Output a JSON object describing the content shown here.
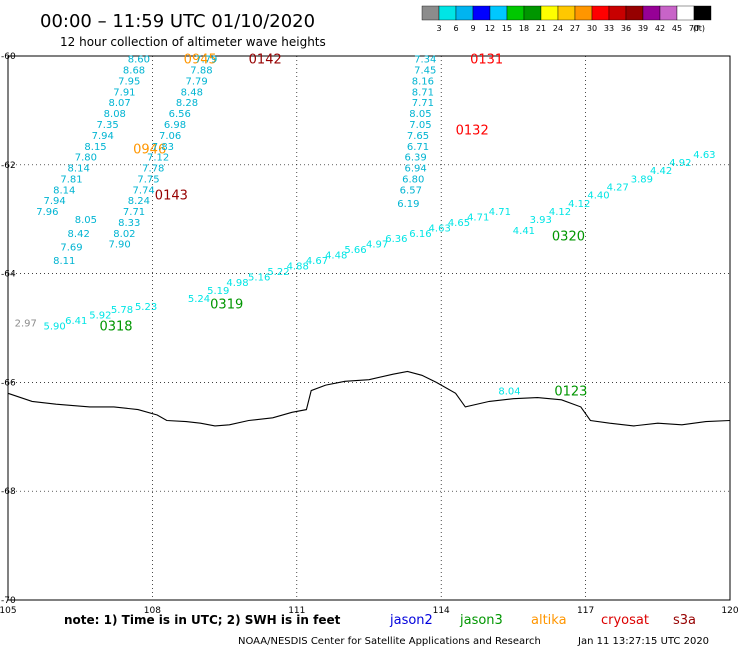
{
  "header": {
    "title": "00:00 – 11:59 UTC 01/10/2020",
    "subtitle": "12 hour collection of altimeter wave heights"
  },
  "colorbar": {
    "colors": [
      "#8c8c8c",
      "#00e5e5",
      "#00b4f0",
      "#0000ff",
      "#00c8ff",
      "#00c800",
      "#009600",
      "#ffff00",
      "#ffc800",
      "#ff9600",
      "#ff0000",
      "#c80000",
      "#960000",
      "#960096",
      "#c864c8",
      "#ffffff",
      "#000000"
    ],
    "labels": [
      "3",
      "6",
      "9",
      "12",
      "15",
      "18",
      "21",
      "24",
      "27",
      "30",
      "33",
      "36",
      "39",
      "42",
      "45",
      "70"
    ],
    "unit": "(ft)"
  },
  "map": {
    "lon_min": 105,
    "lon_max": 120,
    "lat_min": -70,
    "lat_max": -60,
    "lon_ticks": [
      "105",
      "108",
      "111",
      "114",
      "117",
      "120"
    ],
    "lat_ticks": [
      "-60",
      "-62",
      "-64",
      "-66",
      "-68",
      "-70"
    ],
    "coastline": [
      [
        105.0,
        -66.2
      ],
      [
        105.5,
        -66.35
      ],
      [
        106.0,
        -66.4
      ],
      [
        106.7,
        -66.45
      ],
      [
        107.2,
        -66.45
      ],
      [
        107.7,
        -66.5
      ],
      [
        108.1,
        -66.6
      ],
      [
        108.3,
        -66.7
      ],
      [
        108.7,
        -66.72
      ],
      [
        109.0,
        -66.75
      ],
      [
        109.3,
        -66.8
      ],
      [
        109.6,
        -66.78
      ],
      [
        110.0,
        -66.7
      ],
      [
        110.5,
        -66.65
      ],
      [
        110.9,
        -66.55
      ],
      [
        111.2,
        -66.5
      ],
      [
        111.3,
        -66.15
      ],
      [
        111.6,
        -66.05
      ],
      [
        112.0,
        -65.98
      ],
      [
        112.5,
        -65.95
      ],
      [
        113.0,
        -65.85
      ],
      [
        113.3,
        -65.8
      ],
      [
        113.6,
        -65.87
      ],
      [
        113.9,
        -66.0
      ],
      [
        114.3,
        -66.2
      ],
      [
        114.5,
        -66.45
      ],
      [
        115.0,
        -66.35
      ],
      [
        115.5,
        -66.3
      ],
      [
        116.0,
        -66.28
      ],
      [
        116.5,
        -66.32
      ],
      [
        116.9,
        -66.45
      ],
      [
        117.1,
        -66.7
      ],
      [
        117.5,
        -66.75
      ],
      [
        118.0,
        -66.8
      ],
      [
        118.5,
        -66.75
      ],
      [
        119.0,
        -66.78
      ],
      [
        119.5,
        -66.72
      ],
      [
        120.0,
        -66.7
      ]
    ]
  },
  "tracks": [
    {
      "time": "0945",
      "time_color": "#ff9600",
      "time_pos": [
        108.65,
        -60.05
      ],
      "color": "#00b4d2",
      "points": [
        {
          "lon": 107.95,
          "lat": -60.05,
          "v": "8.60"
        },
        {
          "lon": 107.85,
          "lat": -60.25,
          "v": "8.68"
        },
        {
          "lon": 107.75,
          "lat": -60.45,
          "v": "7.95"
        },
        {
          "lon": 107.65,
          "lat": -60.65,
          "v": "7.91"
        },
        {
          "lon": 107.55,
          "lat": -60.85,
          "v": "8.07"
        },
        {
          "lon": 107.45,
          "lat": -61.05,
          "v": "8.08"
        },
        {
          "lon": 107.3,
          "lat": -61.25,
          "v": "7.35"
        },
        {
          "lon": 107.2,
          "lat": -61.45,
          "v": "7.94"
        },
        {
          "lon": 107.05,
          "lat": -61.65,
          "v": "8.15"
        },
        {
          "lon": 106.85,
          "lat": -61.85,
          "v": "7.80"
        },
        {
          "lon": 106.7,
          "lat": -62.05,
          "v": "8.14"
        },
        {
          "lon": 106.55,
          "lat": -62.25,
          "v": "7.81"
        },
        {
          "lon": 106.4,
          "lat": -62.45,
          "v": "8.14"
        },
        {
          "lon": 106.2,
          "lat": -62.65,
          "v": "7.94"
        },
        {
          "lon": 106.05,
          "lat": -62.85,
          "v": "7.96"
        }
      ]
    },
    {
      "time": "0946",
      "time_color": "#ff9600",
      "time_pos": [
        107.6,
        -61.7
      ],
      "color": "#00b4d2",
      "points": [
        {
          "lon": 106.85,
          "lat": -63.0,
          "v": "8.05"
        },
        {
          "lon": 106.7,
          "lat": -63.25,
          "v": "8.42"
        },
        {
          "lon": 106.55,
          "lat": -63.5,
          "v": "7.69"
        },
        {
          "lon": 106.4,
          "lat": -63.75,
          "v": "8.11"
        }
      ]
    },
    {
      "time": "0142",
      "time_color": "#960000",
      "time_pos": [
        110.0,
        -60.05
      ],
      "color": "#00b4d2",
      "points": [
        {
          "lon": 109.35,
          "lat": -60.05,
          "v": "7.79"
        },
        {
          "lon": 109.25,
          "lat": -60.25,
          "v": "7.88"
        },
        {
          "lon": 109.15,
          "lat": -60.45,
          "v": "7.79"
        },
        {
          "lon": 109.05,
          "lat": -60.65,
          "v": "8.48"
        },
        {
          "lon": 108.95,
          "lat": -60.85,
          "v": "8.28"
        },
        {
          "lon": 108.8,
          "lat": -61.05,
          "v": "6.56"
        },
        {
          "lon": 108.7,
          "lat": -61.25,
          "v": "6.98"
        },
        {
          "lon": 108.6,
          "lat": -61.45,
          "v": "7.06"
        },
        {
          "lon": 108.45,
          "lat": -61.65,
          "v": "7.83"
        },
        {
          "lon": 108.35,
          "lat": -61.85,
          "v": "7.12"
        },
        {
          "lon": 108.25,
          "lat": -62.05,
          "v": "7.78"
        },
        {
          "lon": 108.15,
          "lat": -62.25,
          "v": "7.75"
        },
        {
          "lon": 108.05,
          "lat": -62.45,
          "v": "7.74"
        },
        {
          "lon": 107.95,
          "lat": -62.65,
          "v": "8.24"
        },
        {
          "lon": 107.85,
          "lat": -62.85,
          "v": "7.71"
        },
        {
          "lon": 107.75,
          "lat": -63.05,
          "v": "8.33"
        },
        {
          "lon": 107.65,
          "lat": -63.25,
          "v": "8.02"
        },
        {
          "lon": 107.55,
          "lat": -63.45,
          "v": "7.90"
        }
      ]
    },
    {
      "time": "0143",
      "time_color": "#960000",
      "time_pos": [
        108.05,
        -62.55
      ],
      "color": "#00b4d2",
      "points": []
    },
    {
      "time": "0131",
      "time_color": "#ff0000",
      "time_pos": [
        114.6,
        -60.05
      ],
      "color": "#00b4d2",
      "points": [
        {
          "lon": 113.9,
          "lat": -60.05,
          "v": "7.34"
        },
        {
          "lon": 113.9,
          "lat": -60.25,
          "v": "7.45"
        },
        {
          "lon": 113.85,
          "lat": -60.45,
          "v": "8.16"
        },
        {
          "lon": 113.85,
          "lat": -60.65,
          "v": "8.71"
        },
        {
          "lon": 113.85,
          "lat": -60.85,
          "v": "7.71"
        },
        {
          "lon": 113.8,
          "lat": -61.05,
          "v": "8.05"
        },
        {
          "lon": 113.8,
          "lat": -61.25,
          "v": "7.05"
        },
        {
          "lon": 113.75,
          "lat": -61.45,
          "v": "7.65"
        },
        {
          "lon": 113.75,
          "lat": -61.65,
          "v": "6.71"
        },
        {
          "lon": 113.7,
          "lat": -61.85,
          "v": "6.39"
        },
        {
          "lon": 113.7,
          "lat": -62.05,
          "v": "6.94"
        },
        {
          "lon": 113.65,
          "lat": -62.25,
          "v": "6.80"
        },
        {
          "lon": 113.6,
          "lat": -62.45,
          "v": "6.57"
        },
        {
          "lon": 113.55,
          "lat": -62.7,
          "v": "6.19"
        }
      ]
    },
    {
      "time": "0132",
      "time_color": "#ff0000",
      "time_pos": [
        114.3,
        -61.35
      ],
      "color": "#00b4d2",
      "points": []
    },
    {
      "time": "0320",
      "time_color": "#009600",
      "time_pos": [
        116.3,
        -63.3
      ],
      "color": "#00e5e5",
      "points": [
        {
          "lon": 115.95,
          "lat": -63.2,
          "v": "4.41"
        },
        {
          "lon": 116.3,
          "lat": -63.0,
          "v": "3.93"
        },
        {
          "lon": 116.7,
          "lat": -62.85,
          "v": "4.12"
        },
        {
          "lon": 117.1,
          "lat": -62.7,
          "v": "4.12"
        },
        {
          "lon": 117.5,
          "lat": -62.55,
          "v": "4.40"
        },
        {
          "lon": 117.9,
          "lat": -62.4,
          "v": "4.27"
        },
        {
          "lon": 118.4,
          "lat": -62.25,
          "v": "3.89"
        },
        {
          "lon": 118.8,
          "lat": -62.1,
          "v": "4.42"
        },
        {
          "lon": 119.2,
          "lat": -61.95,
          "v": "4.92"
        },
        {
          "lon": 119.7,
          "lat": -61.8,
          "v": "4.63"
        }
      ]
    },
    {
      "time": "0319",
      "time_color": "#009600",
      "time_pos": [
        109.2,
        -64.55
      ],
      "color": "#00e5e5",
      "points": [
        {
          "lon": 109.2,
          "lat": -64.45,
          "v": "5.24"
        },
        {
          "lon": 109.6,
          "lat": -64.3,
          "v": "5.19"
        },
        {
          "lon": 110.0,
          "lat": -64.15,
          "v": "4.98"
        },
        {
          "lon": 110.45,
          "lat": -64.05,
          "v": "5.16"
        },
        {
          "lon": 110.85,
          "lat": -63.95,
          "v": "5.22"
        },
        {
          "lon": 111.25,
          "lat": -63.85,
          "v": "4.88"
        },
        {
          "lon": 111.65,
          "lat": -63.75,
          "v": "4.67"
        },
        {
          "lon": 112.05,
          "lat": -63.65,
          "v": "4.48"
        },
        {
          "lon": 112.45,
          "lat": -63.55,
          "v": "5.66"
        },
        {
          "lon": 112.9,
          "lat": -63.45,
          "v": "4.97"
        },
        {
          "lon": 113.3,
          "lat": -63.35,
          "v": "6.36"
        },
        {
          "lon": 113.8,
          "lat": -63.25,
          "v": "6.16"
        },
        {
          "lon": 114.2,
          "lat": -63.15,
          "v": "4.63"
        },
        {
          "lon": 114.6,
          "lat": -63.05,
          "v": "4.65"
        },
        {
          "lon": 115.0,
          "lat": -62.95,
          "v": "4.71"
        },
        {
          "lon": 115.45,
          "lat": -62.85,
          "v": "4.71"
        }
      ]
    },
    {
      "time": "0318",
      "time_color": "#009600",
      "time_pos": [
        106.9,
        -64.95
      ],
      "color": "#00e5e5",
      "points": [
        {
          "lon": 106.2,
          "lat": -64.95,
          "v": "5.90"
        },
        {
          "lon": 106.65,
          "lat": -64.85,
          "v": "6.41"
        },
        {
          "lon": 107.15,
          "lat": -64.75,
          "v": "5.92"
        },
        {
          "lon": 107.6,
          "lat": -64.65,
          "v": "5.78"
        },
        {
          "lon": 108.1,
          "lat": -64.6,
          "v": "5.23"
        }
      ]
    },
    {
      "time": "0123",
      "time_color": "#009600",
      "time_pos": [
        116.35,
        -66.15
      ],
      "color": "#00e5e5",
      "points": [
        {
          "lon": 115.65,
          "lat": -66.15,
          "v": "8.04"
        }
      ]
    }
  ],
  "stray_points": [
    {
      "lon": 105.6,
      "lat": -64.9,
      "v": "2.97",
      "color": "#8c8c8c"
    }
  ],
  "footer": {
    "note": "note:  1) Time is in UTC;  2) SWH is in feet",
    "legend": [
      {
        "label": "jason2",
        "color": "#0000dc"
      },
      {
        "label": "jason3",
        "color": "#009600"
      },
      {
        "label": "altika",
        "color": "#ff9600"
      },
      {
        "label": "cryosat",
        "color": "#dc0000"
      },
      {
        "label": "s3a",
        "color": "#960000"
      }
    ],
    "credit_left": "NOAA/NESDIS Center for Satellite Applications and Research",
    "credit_right": "Jan 11 13:27:15 UTC 2020"
  }
}
